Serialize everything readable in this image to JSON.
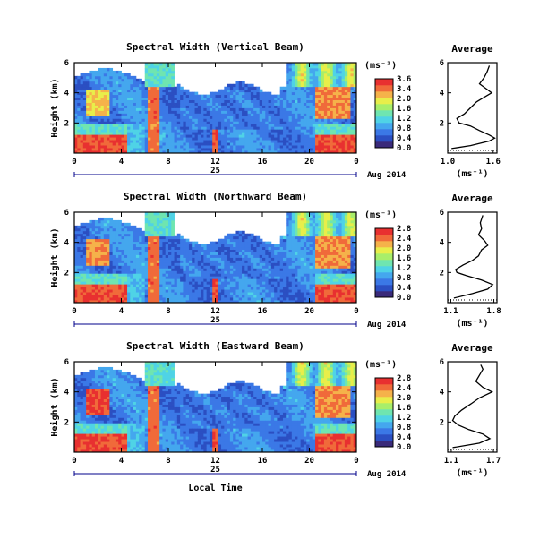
{
  "figure": {
    "date_label": "Aug 2014",
    "date_tick": "25",
    "xlabel": "Local Time",
    "ylabel": "Height (km)",
    "unit": "(ms⁻¹)",
    "x_ticks": [
      "0",
      "4",
      "8",
      "12",
      "16",
      "20",
      "0"
    ],
    "y_ticks": [
      "2",
      "4",
      "6"
    ],
    "profile_title": "Average",
    "colors": [
      "#3a2a7a",
      "#2b4fc2",
      "#3b78e6",
      "#44a7ee",
      "#4fd3e6",
      "#6fe5b0",
      "#a8ee6a",
      "#e8ee4a",
      "#f5b24a",
      "#f06a3a",
      "#e83030"
    ]
  },
  "chart_data": [
    {
      "type": "heatmap",
      "title": "Spectral Width (Vertical Beam)",
      "xlabel": "Local Time",
      "ylabel": "Height (km)",
      "xlim": [
        0,
        24
      ],
      "ylim": [
        0,
        6
      ],
      "colorbar": {
        "ticks": [
          "3.6",
          "3.4",
          "2.0",
          "1.6",
          "1.2",
          "0.8",
          "0.4",
          "0.0"
        ],
        "range": [
          0.0,
          3.6
        ]
      },
      "profile": {
        "title": "Average",
        "xlabel": "(ms⁻¹)",
        "xticks": [
          "1.0",
          "1.6"
        ],
        "xlim": [
          1.0,
          1.65
        ],
        "y": [
          0.3,
          0.5,
          0.8,
          1.0,
          1.2,
          1.5,
          1.8,
          2.0,
          2.3,
          2.6,
          3.0,
          3.4,
          3.7,
          4.0,
          4.3,
          4.6,
          5.0,
          5.4,
          5.8
        ],
        "x": [
          1.05,
          1.3,
          1.55,
          1.62,
          1.55,
          1.42,
          1.3,
          1.15,
          1.12,
          1.22,
          1.3,
          1.38,
          1.48,
          1.58,
          1.5,
          1.42,
          1.48,
          1.52,
          1.55
        ]
      }
    },
    {
      "type": "heatmap",
      "title": "Spectral Width (Northward Beam)",
      "xlabel": "Local Time",
      "ylabel": "Height (km)",
      "xlim": [
        0,
        24
      ],
      "ylim": [
        0,
        6
      ],
      "colorbar": {
        "ticks": [
          "2.8",
          "2.4",
          "2.0",
          "1.6",
          "1.2",
          "0.8",
          "0.4",
          "0.0"
        ],
        "range": [
          0.0,
          2.8
        ]
      },
      "profile": {
        "title": "Average",
        "xlabel": "(ms⁻¹)",
        "xticks": [
          "1.1",
          "1.8"
        ],
        "xlim": [
          1.05,
          1.85
        ],
        "y": [
          0.3,
          0.6,
          0.9,
          1.2,
          1.5,
          1.8,
          2.0,
          2.2,
          2.5,
          2.8,
          3.1,
          3.5,
          3.8,
          4.1,
          4.5,
          4.9,
          5.3,
          5.8
        ],
        "x": [
          1.15,
          1.45,
          1.7,
          1.78,
          1.6,
          1.35,
          1.2,
          1.18,
          1.3,
          1.45,
          1.55,
          1.6,
          1.7,
          1.65,
          1.55,
          1.6,
          1.58,
          1.62
        ]
      }
    },
    {
      "type": "heatmap",
      "title": "Spectral Width (Eastward Beam)",
      "xlabel": "Local Time",
      "ylabel": "Height (km)",
      "xlim": [
        0,
        24
      ],
      "ylim": [
        0,
        6
      ],
      "colorbar": {
        "ticks": [
          "2.8",
          "2.4",
          "2.0",
          "1.6",
          "1.2",
          "0.8",
          "0.4",
          "0.0"
        ],
        "range": [
          0.0,
          2.8
        ]
      },
      "profile": {
        "title": "Average",
        "xlabel": "(ms⁻¹)",
        "xticks": [
          "1.1",
          "1.7"
        ],
        "xlim": [
          1.05,
          1.75
        ],
        "y": [
          0.3,
          0.6,
          0.9,
          1.2,
          1.5,
          1.8,
          2.1,
          2.4,
          2.8,
          3.2,
          3.6,
          4.0,
          4.3,
          4.7,
          5.1,
          5.5,
          5.8
        ],
        "x": [
          1.12,
          1.5,
          1.65,
          1.55,
          1.35,
          1.2,
          1.12,
          1.15,
          1.25,
          1.38,
          1.5,
          1.68,
          1.55,
          1.45,
          1.5,
          1.55,
          1.52
        ]
      }
    }
  ]
}
